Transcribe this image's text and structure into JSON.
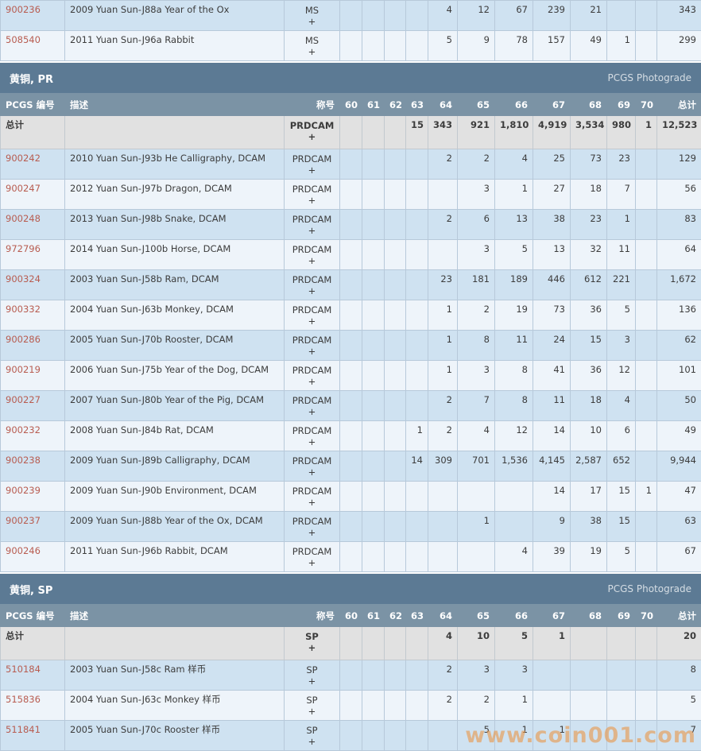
{
  "colors": {
    "section_bar": "#5c7a94",
    "column_header": "#7b93a5",
    "row_blue": "#cfe2f1",
    "row_light": "#eef4fa",
    "row_totals": "#e1e1e1",
    "cert_link": "#b85c50",
    "watermark": "#e9974a"
  },
  "columns": {
    "id_label": "PCGS 编号",
    "desc_label": "描述",
    "designation_label": "称号",
    "grade_labels": [
      "60",
      "61",
      "62",
      "63",
      "64",
      "65",
      "66",
      "67",
      "68",
      "69",
      "70"
    ],
    "total_label": "总计"
  },
  "totals_row_label": "总计",
  "watermark": "www.coin001.com",
  "sections": [
    {
      "title": null,
      "rows": [
        {
          "id": "900236",
          "desc": "2009 Yuan Sun-J88a Year of the Ox",
          "designation": "MS",
          "plus": "+",
          "grades": [
            "",
            "",
            "",
            "",
            "4",
            "12",
            "67",
            "239",
            "21",
            "",
            ""
          ],
          "total": "343"
        },
        {
          "id": "508540",
          "desc": "2011 Yuan Sun-J96a Rabbit",
          "designation": "MS",
          "plus": "+",
          "grades": [
            "",
            "",
            "",
            "",
            "5",
            "9",
            "78",
            "157",
            "49",
            "1",
            ""
          ],
          "total": "299"
        }
      ]
    },
    {
      "title": "黄铜, PR",
      "photograde_label": "PCGS Photograde",
      "totals": {
        "label": "总计",
        "designation": "PRDCAM",
        "plus": "+",
        "grades": [
          "",
          "",
          "",
          "15",
          "343",
          "921",
          "1,810",
          "4,919",
          "3,534",
          "980",
          "1"
        ],
        "total": "12,523"
      },
      "rows": [
        {
          "id": "900242",
          "desc": "2010 Yuan Sun-J93b He Calligraphy, DCAM",
          "designation": "PRDCAM",
          "plus": "+",
          "grades": [
            "",
            "",
            "",
            "",
            "2",
            "2",
            "4",
            "25",
            "73",
            "23",
            ""
          ],
          "total": "129"
        },
        {
          "id": "900247",
          "desc": "2012 Yuan Sun-J97b Dragon, DCAM",
          "designation": "PRDCAM",
          "plus": "+",
          "grades": [
            "",
            "",
            "",
            "",
            "",
            "3",
            "1",
            "27",
            "18",
            "7",
            ""
          ],
          "total": "56"
        },
        {
          "id": "900248",
          "desc": "2013 Yuan Sun-J98b Snake, DCAM",
          "designation": "PRDCAM",
          "plus": "+",
          "grades": [
            "",
            "",
            "",
            "",
            "2",
            "6",
            "13",
            "38",
            "23",
            "1",
            ""
          ],
          "total": "83"
        },
        {
          "id": "972796",
          "desc": "2014 Yuan Sun-J100b Horse, DCAM",
          "designation": "PRDCAM",
          "plus": "+",
          "grades": [
            "",
            "",
            "",
            "",
            "",
            "3",
            "5",
            "13",
            "32",
            "11",
            ""
          ],
          "total": "64"
        },
        {
          "id": "900324",
          "desc": "2003 Yuan Sun-J58b Ram, DCAM",
          "designation": "PRDCAM",
          "plus": "+",
          "grades": [
            "",
            "",
            "",
            "",
            "23",
            "181",
            "189",
            "446",
            "612",
            "221",
            ""
          ],
          "total": "1,672"
        },
        {
          "id": "900332",
          "desc": "2004 Yuan Sun-J63b Monkey, DCAM",
          "designation": "PRDCAM",
          "plus": "+",
          "grades": [
            "",
            "",
            "",
            "",
            "1",
            "2",
            "19",
            "73",
            "36",
            "5",
            ""
          ],
          "total": "136"
        },
        {
          "id": "900286",
          "desc": "2005 Yuan Sun-J70b Rooster, DCAM",
          "designation": "PRDCAM",
          "plus": "+",
          "grades": [
            "",
            "",
            "",
            "",
            "1",
            "8",
            "11",
            "24",
            "15",
            "3",
            ""
          ],
          "total": "62"
        },
        {
          "id": "900219",
          "desc": "2006 Yuan Sun-J75b Year of the Dog, DCAM",
          "designation": "PRDCAM",
          "plus": "+",
          "grades": [
            "",
            "",
            "",
            "",
            "1",
            "3",
            "8",
            "41",
            "36",
            "12",
            ""
          ],
          "total": "101"
        },
        {
          "id": "900227",
          "desc": "2007 Yuan Sun-J80b Year of the Pig, DCAM",
          "designation": "PRDCAM",
          "plus": "+",
          "grades": [
            "",
            "",
            "",
            "",
            "2",
            "7",
            "8",
            "11",
            "18",
            "4",
            ""
          ],
          "total": "50"
        },
        {
          "id": "900232",
          "desc": "2008 Yuan Sun-J84b Rat, DCAM",
          "designation": "PRDCAM",
          "plus": "+",
          "grades": [
            "",
            "",
            "",
            "1",
            "2",
            "4",
            "12",
            "14",
            "10",
            "6",
            ""
          ],
          "total": "49"
        },
        {
          "id": "900238",
          "desc": "2009 Yuan Sun-J89b Calligraphy, DCAM",
          "designation": "PRDCAM",
          "plus": "+",
          "grades": [
            "",
            "",
            "",
            "14",
            "309",
            "701",
            "1,536",
            "4,145",
            "2,587",
            "652",
            ""
          ],
          "total": "9,944"
        },
        {
          "id": "900239",
          "desc": "2009 Yuan Sun-J90b Environment, DCAM",
          "designation": "PRDCAM",
          "plus": "+",
          "grades": [
            "",
            "",
            "",
            "",
            "",
            "",
            "",
            "14",
            "17",
            "15",
            "1"
          ],
          "total": "47"
        },
        {
          "id": "900237",
          "desc": "2009 Yuan Sun-J88b Year of the Ox, DCAM",
          "designation": "PRDCAM",
          "plus": "+",
          "grades": [
            "",
            "",
            "",
            "",
            "",
            "1",
            "",
            "9",
            "38",
            "15",
            ""
          ],
          "total": "63"
        },
        {
          "id": "900246",
          "desc": "2011 Yuan Sun-J96b Rabbit, DCAM",
          "designation": "PRDCAM",
          "plus": "+",
          "grades": [
            "",
            "",
            "",
            "",
            "",
            "",
            "4",
            "39",
            "19",
            "5",
            ""
          ],
          "total": "67"
        }
      ]
    },
    {
      "title": "黄铜, SP",
      "photograde_label": "PCGS Photograde",
      "totals": {
        "label": "总计",
        "designation": "SP",
        "plus": "+",
        "grades": [
          "",
          "",
          "",
          "",
          "4",
          "10",
          "5",
          "1",
          "",
          "",
          ""
        ],
        "total": "20"
      },
      "rows": [
        {
          "id": "510184",
          "desc": "2003 Yuan Sun-J58c Ram 样币",
          "designation": "SP",
          "plus": "+",
          "grades": [
            "",
            "",
            "",
            "",
            "2",
            "3",
            "3",
            "",
            "",
            "",
            ""
          ],
          "total": "8"
        },
        {
          "id": "515836",
          "desc": "2004 Yuan Sun-J63c Monkey 样币",
          "designation": "SP",
          "plus": "+",
          "grades": [
            "",
            "",
            "",
            "",
            "2",
            "2",
            "1",
            "",
            "",
            "",
            ""
          ],
          "total": "5"
        },
        {
          "id": "511841",
          "desc": "2005 Yuan Sun-J70c Rooster 样币",
          "designation": "SP",
          "plus": "+",
          "grades": [
            "",
            "",
            "",
            "",
            "",
            "5",
            "1",
            "1",
            "",
            "",
            ""
          ],
          "total": "7"
        }
      ]
    }
  ]
}
